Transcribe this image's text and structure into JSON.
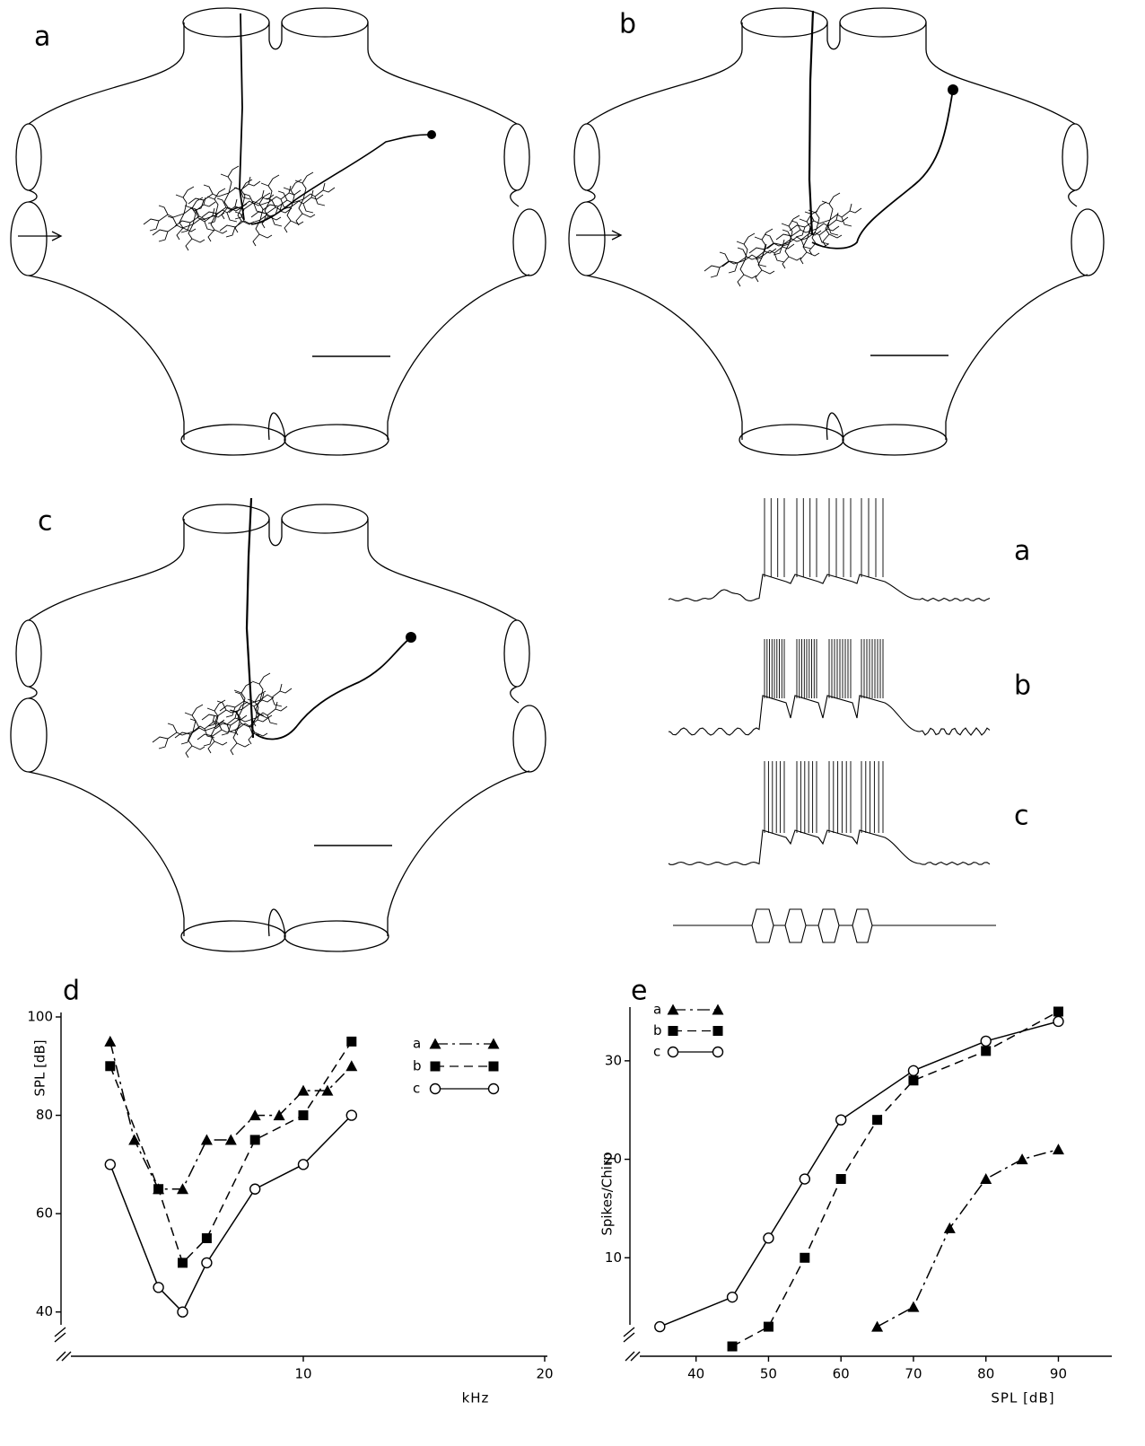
{
  "figure": {
    "panel_labels": [
      "a",
      "b",
      "c"
    ],
    "trace_labels": [
      "a",
      "b",
      "c"
    ]
  },
  "chart_data": [
    {
      "type": "line",
      "title": "d",
      "xlabel": "kHz",
      "ylabel": "SPL [dB]",
      "xlim": [
        0,
        20
      ],
      "ylim": [
        31,
        100
      ],
      "xticks": [
        10,
        20
      ],
      "yticks": [
        40,
        60,
        80,
        100
      ],
      "series": [
        {
          "name": "a",
          "color": "#000000",
          "marker": "triangle",
          "line_style": "dashdot",
          "x": [
            2,
            3,
            4,
            5,
            6,
            7,
            8,
            9,
            10,
            11,
            12
          ],
          "values": [
            95,
            75,
            65,
            65,
            75,
            75,
            80,
            80,
            85,
            85,
            90
          ]
        },
        {
          "name": "b",
          "color": "#000000",
          "marker": "square",
          "line_style": "dashed",
          "x": [
            2,
            4,
            5,
            6,
            8,
            10,
            12
          ],
          "values": [
            90,
            65,
            50,
            55,
            75,
            80,
            95
          ]
        },
        {
          "name": "c",
          "color": "#000000",
          "marker": "circle",
          "line_style": "solid",
          "x": [
            2,
            4,
            5,
            6,
            8,
            10,
            12
          ],
          "values": [
            70,
            45,
            40,
            50,
            65,
            70,
            80
          ]
        }
      ]
    },
    {
      "type": "line",
      "title": "e",
      "xlabel": "SPL [dB]",
      "ylabel": "Spikes/Chirp",
      "xlim": [
        31,
        97
      ],
      "ylim": [
        0,
        35
      ],
      "xticks": [
        40,
        50,
        60,
        70,
        80,
        90
      ],
      "yticks": [
        10,
        20,
        30
      ],
      "series": [
        {
          "name": "a",
          "color": "#000000",
          "marker": "triangle",
          "line_style": "dashdot",
          "x": [
            65,
            70,
            75,
            80,
            85,
            90
          ],
          "values": [
            3,
            5,
            13,
            18,
            20,
            21
          ]
        },
        {
          "name": "b",
          "color": "#000000",
          "marker": "square",
          "line_style": "dashed",
          "x": [
            45,
            50,
            55,
            60,
            65,
            70,
            80,
            90
          ],
          "values": [
            1,
            3,
            10,
            18,
            24,
            28,
            31,
            35
          ]
        },
        {
          "name": "c",
          "color": "#000000",
          "marker": "circle",
          "line_style": "solid",
          "x": [
            35,
            45,
            50,
            55,
            60,
            70,
            80,
            90
          ],
          "values": [
            3,
            6,
            12,
            18,
            24,
            29,
            32,
            34
          ]
        }
      ]
    }
  ]
}
